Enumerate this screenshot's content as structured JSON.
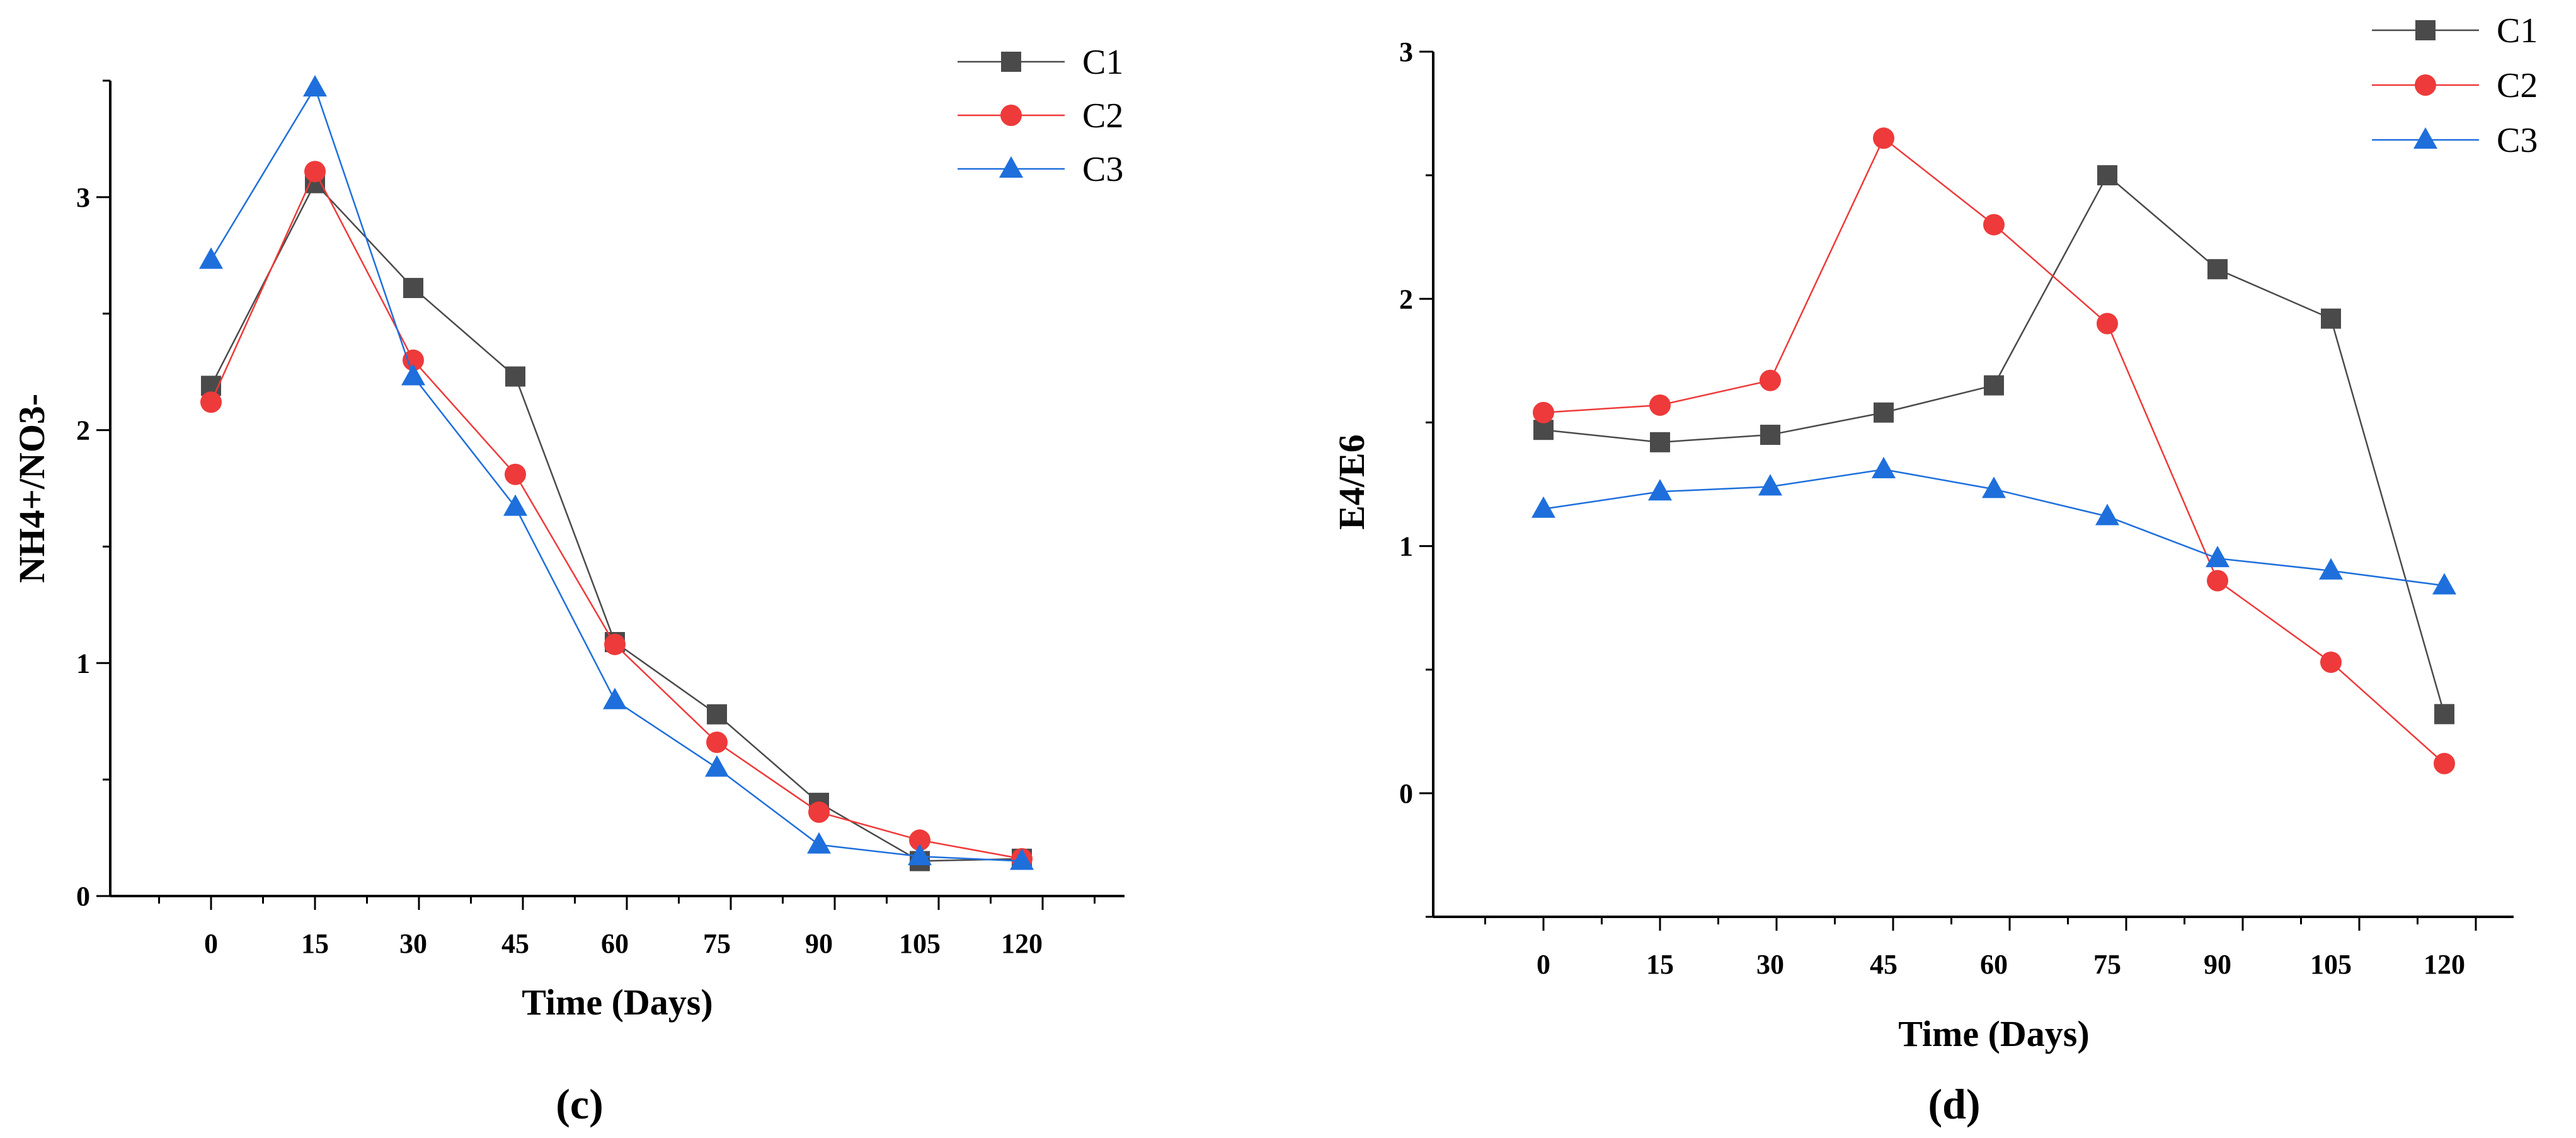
{
  "chart_data": [
    {
      "type": "line",
      "panel_label": "(c)",
      "categories": [
        "0",
        "15",
        "30",
        "45",
        "60",
        "75",
        "90",
        "105",
        "120"
      ],
      "xlabel": "Time (Days)",
      "ylabel": "NH4+/NO3-",
      "ylim": [
        0,
        3.5
      ],
      "yticks": [
        "0",
        "1",
        "2",
        "3"
      ],
      "legend_position": "top-right",
      "series": [
        {
          "name": "C1",
          "marker": "square",
          "color": "#4a4a4a",
          "values": [
            2.19,
            3.06,
            2.61,
            2.23,
            1.09,
            0.78,
            0.4,
            0.15,
            0.16
          ]
        },
        {
          "name": "C2",
          "marker": "circle",
          "color": "#ee3a3a",
          "values": [
            2.12,
            3.11,
            2.3,
            1.81,
            1.08,
            0.66,
            0.36,
            0.24,
            0.16
          ]
        },
        {
          "name": "C3",
          "marker": "triangle",
          "color": "#1e6fdc",
          "values": [
            2.73,
            3.47,
            2.23,
            1.67,
            0.84,
            0.55,
            0.22,
            0.17,
            0.15
          ]
        }
      ]
    },
    {
      "type": "line",
      "panel_label": "(d)",
      "categories": [
        "0",
        "15",
        "30",
        "45",
        "60",
        "75",
        "90",
        "105",
        "120"
      ],
      "xlabel": "Time (Days)",
      "ylabel": "E4/E6",
      "ylim": [
        -0.5,
        3
      ],
      "yticks": [
        "0",
        "1",
        "2",
        "3"
      ],
      "legend_position": "top-right",
      "series": [
        {
          "name": "C1",
          "marker": "square",
          "color": "#4a4a4a",
          "values": [
            1.47,
            1.42,
            1.45,
            1.54,
            1.65,
            2.5,
            2.12,
            1.92,
            0.32
          ]
        },
        {
          "name": "C2",
          "marker": "circle",
          "color": "#ee3a3a",
          "values": [
            1.54,
            1.57,
            1.67,
            2.65,
            2.3,
            1.9,
            0.86,
            0.53,
            0.12
          ]
        },
        {
          "name": "C3",
          "marker": "triangle",
          "color": "#1e6fdc",
          "values": [
            1.15,
            1.22,
            1.24,
            1.31,
            1.23,
            1.12,
            0.95,
            0.9,
            0.84
          ]
        }
      ]
    }
  ]
}
